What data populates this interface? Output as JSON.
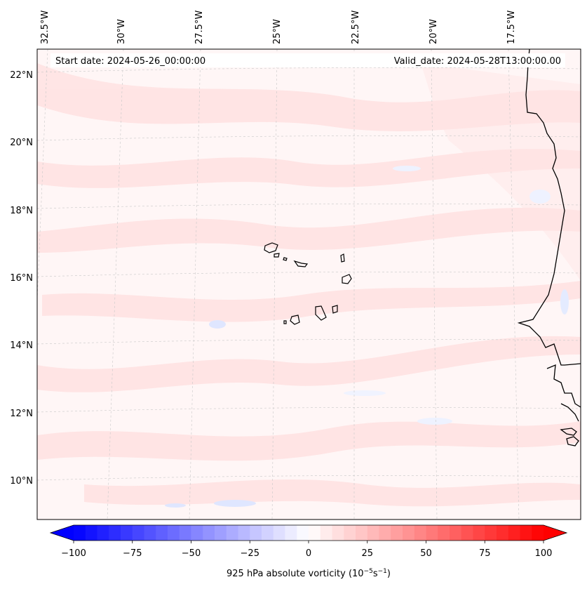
{
  "header": {
    "start_date": "Start date: 2024-05-26_00:00:00",
    "valid_date": "Valid_date: 2024-05-28T13:00:00.00"
  },
  "axes": {
    "longitude_labels": [
      "32.5°W",
      "30°W",
      "27.5°W",
      "25°W",
      "22.5°W",
      "20°W",
      "17.5°W"
    ],
    "latitude_labels": [
      "22°N",
      "20°N",
      "18°N",
      "16°N",
      "14°N",
      "12°N",
      "10°N"
    ]
  },
  "colorbar": {
    "label_main": "925 hPa absolute vorticity (10",
    "label_exp1": "−5",
    "label_mid": "s",
    "label_exp2": "−1",
    "label_end": ")",
    "ticks": [
      "−100",
      "−75",
      "−50",
      "−25",
      "0",
      "25",
      "50",
      "75",
      "100"
    ],
    "min": -100,
    "max": 100,
    "step": 5,
    "color_low": "#0000ff",
    "color_mid": "#ffffff",
    "color_high": "#ff0000"
  },
  "colors": {
    "field_base": "#fff6f6",
    "positive_shade": "#ffe4e4",
    "negative_shade": "#eef2ff",
    "coast": "#000000",
    "grid": "#c8c8c8"
  }
}
